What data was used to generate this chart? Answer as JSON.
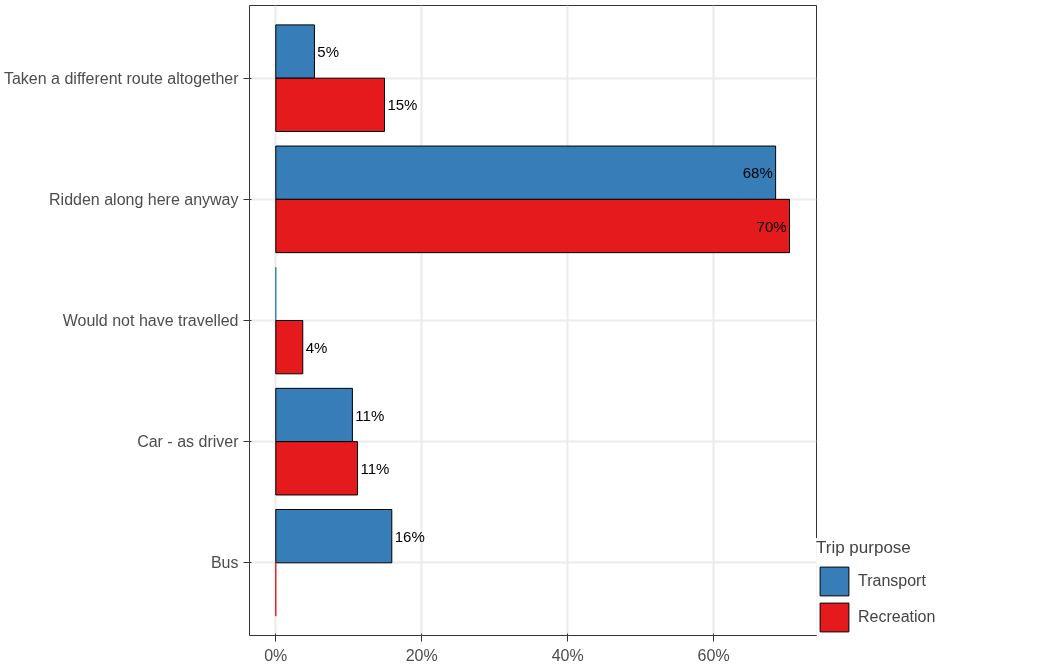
{
  "chart_data": {
    "type": "bar",
    "orientation": "horizontal",
    "categories": [
      "Taken a different route altogether",
      "Ridden along here anyway",
      "Would not have travelled",
      "Car - as driver",
      "Bus"
    ],
    "series": [
      {
        "name": "Transport",
        "color": "#377eb8",
        "values": [
          5.3,
          68.5,
          0,
          10.5,
          15.9
        ],
        "value_labels": [
          "5%",
          "68%",
          null,
          "11%",
          "16%"
        ]
      },
      {
        "name": "Recreation",
        "color": "#e41a1c",
        "values": [
          14.9,
          70.4,
          3.7,
          11.2,
          0
        ],
        "value_labels": [
          "15%",
          "70%",
          "4%",
          "11%",
          null
        ]
      }
    ],
    "xlim": [
      -3.6,
      74.1
    ],
    "xticks": [
      {
        "value": 0,
        "label": "0%"
      },
      {
        "value": 20,
        "label": "20%"
      },
      {
        "value": 40,
        "label": "40%"
      },
      {
        "value": 60,
        "label": "60%"
      }
    ],
    "grid": true,
    "legend": "right",
    "legend_title": "Trip purpose"
  }
}
